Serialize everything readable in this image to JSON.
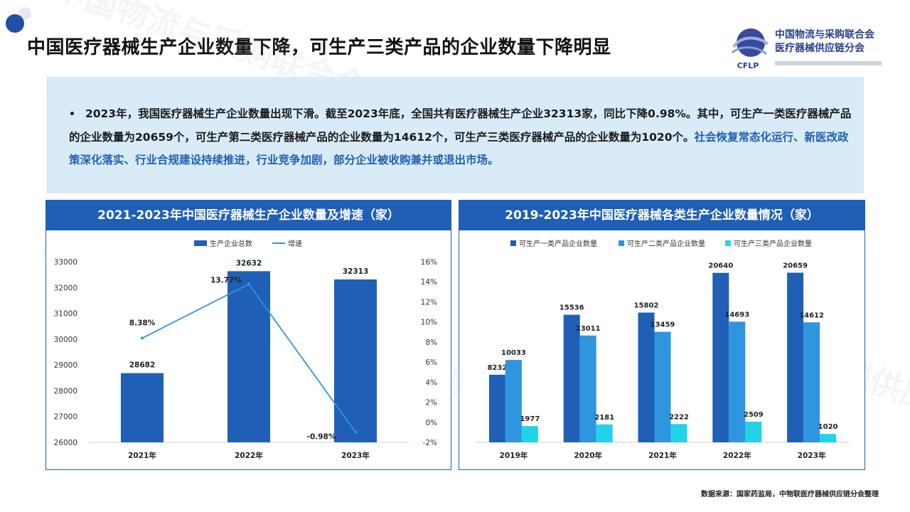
{
  "page": {
    "title": "中国医疗器械生产企业数量下降，可生产三类产品的企业数量下降明显",
    "source": "数据来源：国家药监局，中物联医疗器械供应链分会整理"
  },
  "logo": {
    "line1": "中国物流与采购联合会",
    "line2": "医疗器械供应链分会",
    "mark": "CFLP"
  },
  "summary": {
    "bullet": "•",
    "plain": "2023年，我国医疗器械生产企业数量出现下滑。截至2023年底，全国共有医疗器械生产企业32313家，同比下降0.98%。其中，可生产一类医疗器械产品的企业数量为20659个，可生产第二类医疗器械产品的企业数量为14612个，可生产三类医疗器械产品的企业数量为1020个。",
    "highlight": "社会恢复常态化运行、新医改政策深化落实、行业合规建设持续推进，行业竞争加剧，部分企业被收购兼并或退出市场。"
  },
  "colors": {
    "primary": "#1f5fb5",
    "bar_dark": "#1f5fb5",
    "bar_mid": "#2f95de",
    "bar_light": "#22d3e8",
    "line": "#2f95de"
  },
  "chart_data": [
    {
      "type": "bar",
      "title": "2021-2023年中国医疗器械生产企业数量及增速（家）",
      "categories": [
        "2021年",
        "2022年",
        "2023年"
      ],
      "series": [
        {
          "name": "生产企业总数",
          "type": "bar",
          "axis": "left",
          "values": [
            28682,
            32632,
            32313
          ]
        },
        {
          "name": "增速",
          "type": "line",
          "axis": "right",
          "values": [
            8.38,
            13.77,
            -0.98
          ],
          "labels": [
            "8.38%",
            "13.77%",
            "-0.98%"
          ]
        }
      ],
      "ylim": [
        26000,
        33000
      ],
      "yticks": [
        26000,
        27000,
        28000,
        29000,
        30000,
        31000,
        32000,
        33000
      ],
      "y2lim": [
        -2,
        16
      ],
      "y2ticks": [
        "-2%",
        "0%",
        "2%",
        "4%",
        "6%",
        "8%",
        "10%",
        "12%",
        "14%",
        "16%"
      ],
      "legend": "top-center",
      "grid": false
    },
    {
      "type": "bar",
      "title": "2019-2023年中国医疗器械各类生产企业数量情况（家）",
      "categories": [
        "2019年",
        "2020年",
        "2021年",
        "2022年",
        "2023年"
      ],
      "series": [
        {
          "name": "可生产一类产品企业数量",
          "values": [
            8232,
            15536,
            15802,
            20640,
            20659
          ]
        },
        {
          "name": "可生产二类产品企业数量",
          "values": [
            10033,
            13011,
            13459,
            14693,
            14612
          ]
        },
        {
          "name": "可生产三类产品企业数量",
          "values": [
            1977,
            2181,
            2222,
            2509,
            1020
          ]
        }
      ],
      "ylim": [
        0,
        22000
      ],
      "legend": "top-center",
      "grid": false
    }
  ]
}
